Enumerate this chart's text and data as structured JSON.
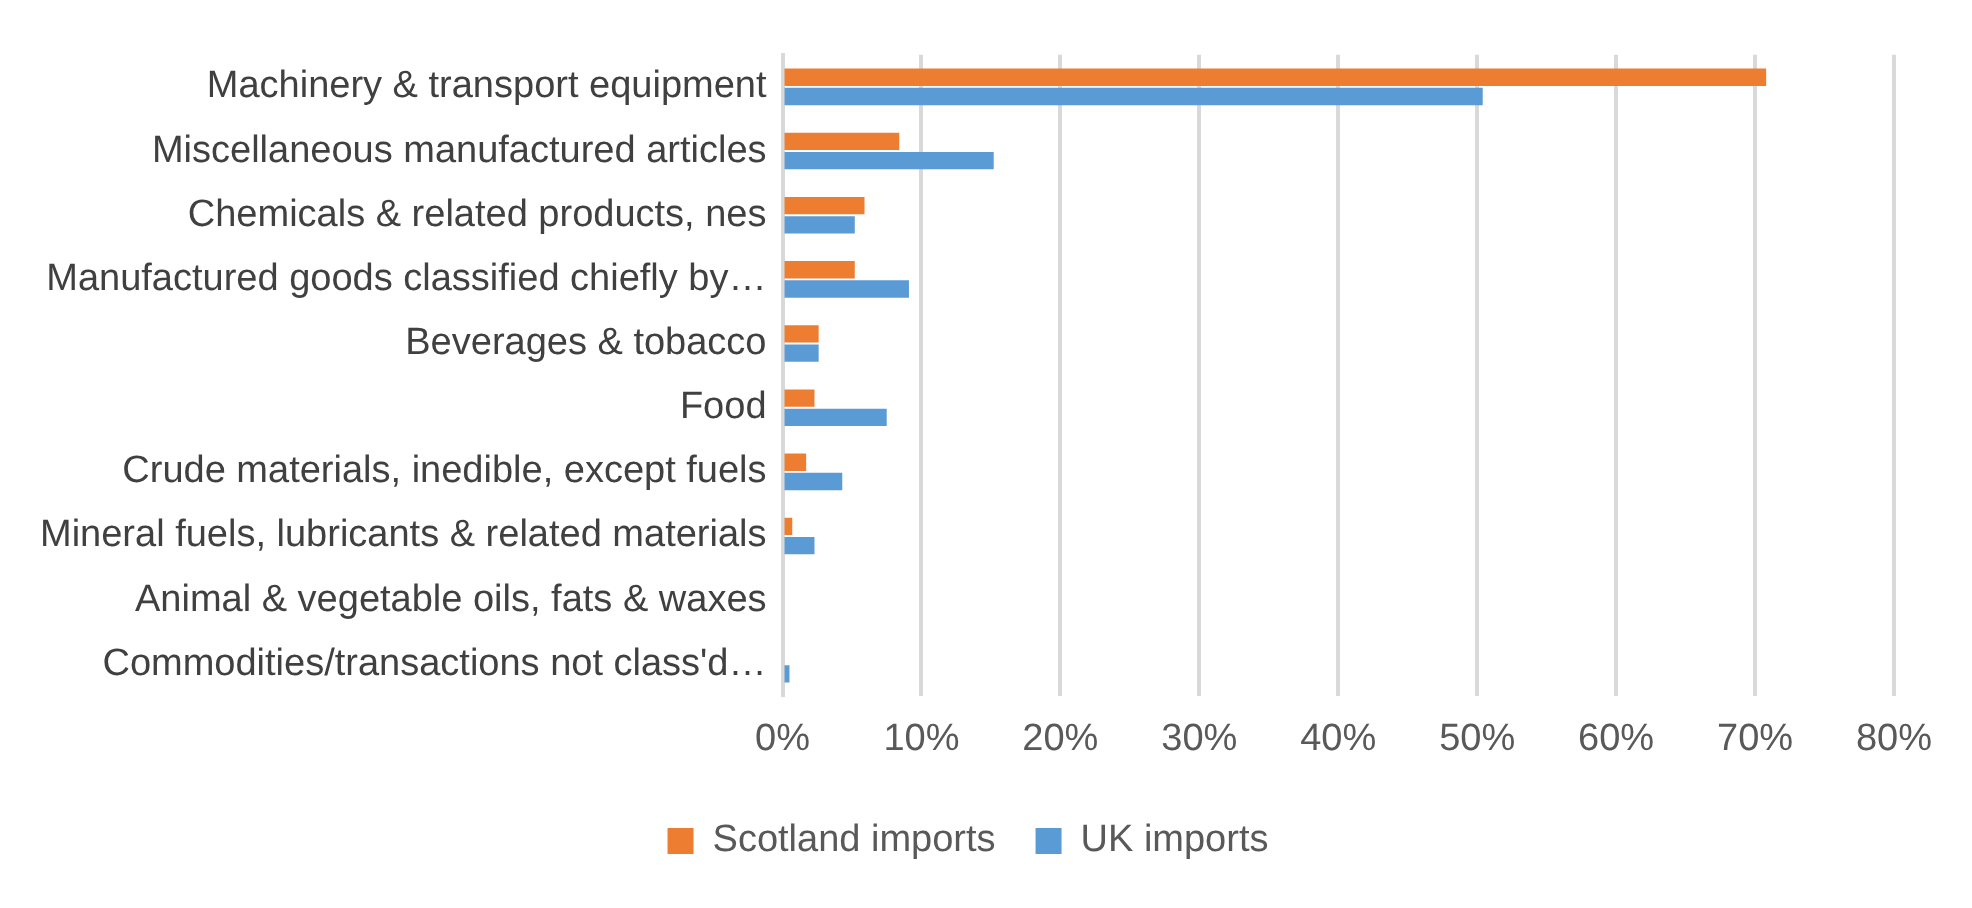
{
  "chart_data": {
    "type": "bar",
    "orientation": "horizontal",
    "categories": [
      "Machinery & transport equipment",
      "Miscellaneous manufactured articles",
      "Chemicals & related products, nes",
      "Manufactured goods classified chiefly by…",
      "Beverages & tobacco",
      "Food",
      "Crude materials, inedible, except fuels",
      "Mineral fuels, lubricants & related materials",
      "Animal & vegetable oils, fats & waxes",
      "Commodities/transactions not class'd…"
    ],
    "series": [
      {
        "name": "Scotland imports",
        "color": "#ed7d31",
        "values": [
          70.8,
          8.4,
          5.9,
          5.2,
          2.6,
          2.3,
          1.7,
          0.7,
          0,
          0
        ]
      },
      {
        "name": "UK imports",
        "color": "#5b9bd5",
        "values": [
          50.4,
          15.2,
          5.2,
          9.1,
          2.6,
          7.5,
          4.3,
          2.3,
          0,
          0.5
        ]
      }
    ],
    "xlim": [
      0,
      80
    ],
    "xticks": [
      {
        "value": 0,
        "label": "0%"
      },
      {
        "value": 10,
        "label": "10%"
      },
      {
        "value": 20,
        "label": "20%"
      },
      {
        "value": 30,
        "label": "30%"
      },
      {
        "value": 40,
        "label": "40%"
      },
      {
        "value": 50,
        "label": "50%"
      },
      {
        "value": 60,
        "label": "60%"
      },
      {
        "value": 70,
        "label": "70%"
      },
      {
        "value": 80,
        "label": "80%"
      }
    ],
    "grid": "x",
    "legend": "bottom"
  }
}
